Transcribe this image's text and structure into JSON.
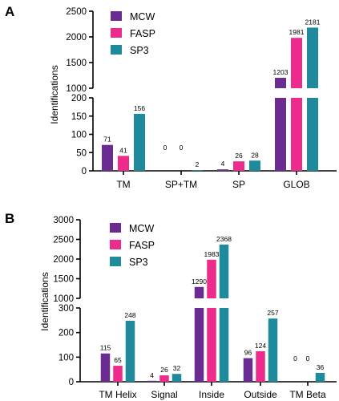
{
  "chart_data": [
    {
      "panel": "A",
      "type": "bar",
      "ylabel": "Identifications",
      "categories": [
        "TM",
        "SP+TM",
        "SP",
        "GLOB"
      ],
      "series": [
        {
          "name": "MCW",
          "color": "#6a2c91",
          "values": [
            71,
            0,
            4,
            1203
          ]
        },
        {
          "name": "FASP",
          "color": "#ec2b8c",
          "values": [
            41,
            0,
            26,
            1981
          ]
        },
        {
          "name": "SP3",
          "color": "#1e8a9c",
          "values": [
            156,
            2,
            28,
            2181
          ]
        }
      ],
      "broken_axis": {
        "lower": {
          "range": [
            0,
            200
          ],
          "ticks": [
            "0",
            "50",
            "100",
            "150",
            "200"
          ]
        },
        "upper": {
          "range": [
            1000,
            2500
          ],
          "ticks": [
            "1000",
            "1500",
            "2000",
            "2500"
          ]
        }
      },
      "data_labels": {
        "MCW": [
          "71",
          "0",
          "4",
          "1203"
        ],
        "FASP": [
          "41",
          "0",
          "26",
          "1981"
        ],
        "SP3": [
          "156",
          "2",
          "28",
          "2181"
        ]
      },
      "legend": "top-left"
    },
    {
      "panel": "B",
      "type": "bar",
      "ylabel": "Identifications",
      "categories": [
        "TM Helix",
        "Signal",
        "Inside",
        "Outside",
        "TM Beta"
      ],
      "series": [
        {
          "name": "MCW",
          "color": "#6a2c91",
          "values": [
            115,
            4,
            1290,
            96,
            0
          ]
        },
        {
          "name": "FASP",
          "color": "#ec2b8c",
          "values": [
            65,
            26,
            1983,
            124,
            0
          ]
        },
        {
          "name": "SP3",
          "color": "#1e8a9c",
          "values": [
            248,
            32,
            2368,
            257,
            36
          ]
        }
      ],
      "broken_axis": {
        "lower": {
          "range": [
            0,
            300
          ],
          "ticks": [
            "0",
            "100",
            "200",
            "300"
          ]
        },
        "upper": {
          "range": [
            1000,
            3000
          ],
          "ticks": [
            "1000",
            "1500",
            "2000",
            "2500",
            "3000"
          ]
        }
      },
      "data_labels": {
        "MCW": [
          "115",
          "4",
          "1290",
          "96",
          "0"
        ],
        "FASP": [
          "65",
          "26",
          "1983",
          "124",
          "0"
        ],
        "SP3": [
          "248",
          "32",
          "2368",
          "257",
          "36"
        ]
      },
      "legend": "top-left"
    }
  ]
}
